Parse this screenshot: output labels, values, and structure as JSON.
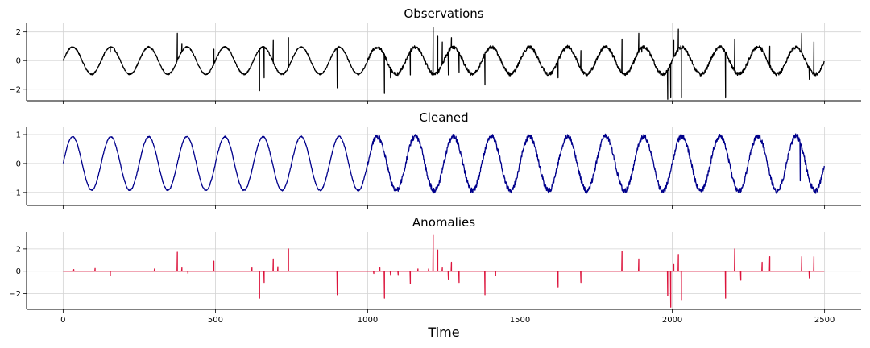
{
  "chart_data": {
    "type": "line",
    "xlabel": "Time",
    "xlim": [
      -120,
      2620
    ],
    "x_ticks": [
      0,
      500,
      1000,
      1500,
      2000,
      2500
    ],
    "grid": true,
    "n_points": 2500,
    "panels": [
      {
        "title": "Observations",
        "ylim": [
          -2.8,
          2.6
        ],
        "y_ticks": [
          2,
          0,
          -2
        ],
        "series": {
          "color": "#000000",
          "base": {
            "amplitude_early": 0.95,
            "amplitude_late": 0.95,
            "period": 125,
            "noise_early": 0.05,
            "noise_late": 0.12
          },
          "spikes": [
            [
              155,
              0.6
            ],
            [
              375,
              1.9
            ],
            [
              390,
              1.2
            ],
            [
              495,
              0.8
            ],
            [
              645,
              -2.1
            ],
            [
              660,
              -1.2
            ],
            [
              690,
              1.4
            ],
            [
              740,
              1.6
            ],
            [
              900,
              -1.9
            ],
            [
              1055,
              -2.3
            ],
            [
              1075,
              -1.2
            ],
            [
              1140,
              -1.0
            ],
            [
              1215,
              2.3
            ],
            [
              1230,
              1.7
            ],
            [
              1245,
              1.3
            ],
            [
              1265,
              -1.0
            ],
            [
              1275,
              1.6
            ],
            [
              1300,
              -0.8
            ],
            [
              1385,
              -1.7
            ],
            [
              1625,
              -1.2
            ],
            [
              1700,
              0.7
            ],
            [
              1835,
              1.5
            ],
            [
              1890,
              1.9
            ],
            [
              1900,
              0.6
            ],
            [
              1985,
              -2.7
            ],
            [
              1995,
              -2.6
            ],
            [
              2005,
              1.4
            ],
            [
              2020,
              2.2
            ],
            [
              2030,
              -2.6
            ],
            [
              2175,
              -2.6
            ],
            [
              2205,
              1.5
            ],
            [
              2225,
              -0.8
            ],
            [
              2295,
              0.9
            ],
            [
              2320,
              1.0
            ],
            [
              2425,
              1.9
            ],
            [
              2450,
              -1.3
            ],
            [
              2465,
              1.3
            ]
          ]
        }
      },
      {
        "title": "Cleaned",
        "ylim": [
          -1.45,
          1.25
        ],
        "y_ticks": [
          1,
          0,
          -1
        ],
        "series": {
          "color": "#00008b",
          "base": {
            "amplitude_early": 0.92,
            "amplitude_late": 0.95,
            "period": 125,
            "noise_early": 0.02,
            "noise_late": 0.09
          },
          "spikes": [
            [
              2420,
              -0.6
            ],
            [
              2490,
              -0.4
            ]
          ]
        }
      },
      {
        "title": "Anomalies",
        "ylim": [
          -3.4,
          3.5
        ],
        "y_ticks": [
          2,
          0,
          -2
        ],
        "series": {
          "color": "#dc143c",
          "base": {
            "amplitude_early": 0,
            "amplitude_late": 0,
            "period": 125,
            "noise_early": 0,
            "noise_late": 0
          },
          "spikes": [
            [
              35,
              0.15
            ],
            [
              105,
              0.25
            ],
            [
              155,
              -0.4
            ],
            [
              300,
              0.2
            ],
            [
              375,
              1.7
            ],
            [
              390,
              0.3
            ],
            [
              410,
              -0.2
            ],
            [
              495,
              0.9
            ],
            [
              620,
              0.3
            ],
            [
              645,
              -2.4
            ],
            [
              660,
              -1.0
            ],
            [
              690,
              1.1
            ],
            [
              705,
              0.4
            ],
            [
              740,
              2.0
            ],
            [
              900,
              -2.1
            ],
            [
              1020,
              -0.2
            ],
            [
              1040,
              0.3
            ],
            [
              1055,
              -2.4
            ],
            [
              1075,
              -0.3
            ],
            [
              1100,
              -0.3
            ],
            [
              1140,
              -1.1
            ],
            [
              1165,
              0.2
            ],
            [
              1200,
              0.2
            ],
            [
              1215,
              3.2
            ],
            [
              1230,
              1.9
            ],
            [
              1245,
              0.3
            ],
            [
              1265,
              -0.7
            ],
            [
              1275,
              0.8
            ],
            [
              1300,
              -1.0
            ],
            [
              1385,
              -2.1
            ],
            [
              1420,
              -0.4
            ],
            [
              1625,
              -1.4
            ],
            [
              1700,
              -1.0
            ],
            [
              1835,
              1.8
            ],
            [
              1890,
              1.1
            ],
            [
              1985,
              -2.2
            ],
            [
              1995,
              -3.2
            ],
            [
              2005,
              0.6
            ],
            [
              2020,
              1.5
            ],
            [
              2030,
              -2.6
            ],
            [
              2175,
              -2.4
            ],
            [
              2205,
              2.0
            ],
            [
              2225,
              -0.8
            ],
            [
              2295,
              0.8
            ],
            [
              2320,
              1.3
            ],
            [
              2425,
              1.3
            ],
            [
              2450,
              -0.6
            ],
            [
              2465,
              1.3
            ]
          ]
        }
      }
    ]
  }
}
